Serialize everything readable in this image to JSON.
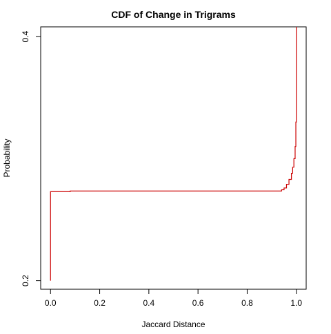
{
  "chart_data": {
    "type": "line",
    "title": "CDF of Change in Trigrams",
    "xlabel": "Jaccard Distance",
    "ylabel": "Probability",
    "xlim": [
      -0.04,
      1.04
    ],
    "ylim": [
      0.193,
      0.408
    ],
    "x_ticks": [
      0.0,
      0.2,
      0.4,
      0.6,
      0.8,
      1.0
    ],
    "x_tick_labels": [
      "0.0",
      "0.2",
      "0.4",
      "0.6",
      "0.8",
      "1.0"
    ],
    "y_ticks": [
      0.2,
      0.4
    ],
    "y_tick_labels": [
      "0.2",
      "0.4"
    ],
    "grid": false,
    "legend": "none",
    "series": [
      {
        "color": "#cc0000",
        "step": true,
        "x": [
          0.0,
          0.0,
          0.08,
          0.92,
          0.94,
          0.95,
          0.96,
          0.97,
          0.98,
          0.985,
          0.99,
          0.995,
          0.998,
          1.0,
          1.0
        ],
        "y": [
          0.2,
          0.273,
          0.2735,
          0.2735,
          0.2745,
          0.276,
          0.279,
          0.283,
          0.288,
          0.293,
          0.3,
          0.31,
          0.33,
          0.34,
          0.408
        ]
      }
    ]
  }
}
